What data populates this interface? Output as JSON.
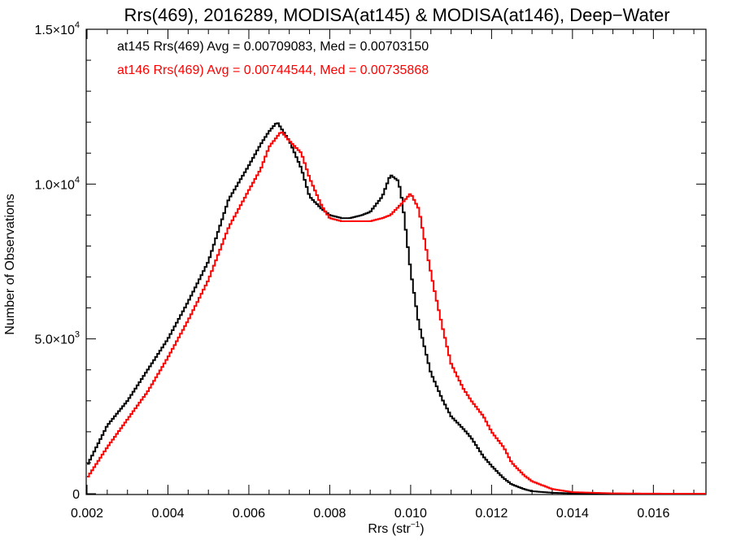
{
  "chart_data": {
    "type": "line",
    "title": "Rrs(469), 2016289, MODISA(at145) & MODISA(at146), Deep−Water",
    "xlabel": "Rrs (str",
    "xlabel_sup": "−1",
    "xlabel_close": ")",
    "ylabel": "Number of Observations",
    "xlim": [
      0.002,
      0.0173
    ],
    "ylim": [
      0,
      15000
    ],
    "x_ticks": [
      {
        "value": 0.002,
        "label": "0.002"
      },
      {
        "value": 0.004,
        "label": "0.004"
      },
      {
        "value": 0.006,
        "label": "0.006"
      },
      {
        "value": 0.008,
        "label": "0.008"
      },
      {
        "value": 0.01,
        "label": "0.010"
      },
      {
        "value": 0.012,
        "label": "0.012"
      },
      {
        "value": 0.014,
        "label": "0.014"
      },
      {
        "value": 0.016,
        "label": "0.016"
      }
    ],
    "y_ticks": [
      {
        "value": 0,
        "mantissa": "0",
        "exponent": ""
      },
      {
        "value": 5000,
        "mantissa": "5.0×10",
        "exponent": "3"
      },
      {
        "value": 10000,
        "mantissa": "1.0×10",
        "exponent": "4"
      },
      {
        "value": 15000,
        "mantissa": "1.5×10",
        "exponent": "4"
      }
    ],
    "annotations": [
      {
        "text": "at145 Rrs(469) Avg = 0.00709083, Med = 0.00703150",
        "color": "#000000"
      },
      {
        "text": "at146 Rrs(469) Avg = 0.00744544, Med = 0.00735868",
        "color": "#ff0000"
      }
    ],
    "series": [
      {
        "color": "#000000",
        "x": [
          0.002,
          0.0025,
          0.003,
          0.0035,
          0.004,
          0.0045,
          0.005,
          0.0055,
          0.006,
          0.0063,
          0.0065,
          0.0067,
          0.007,
          0.0073,
          0.0075,
          0.0078,
          0.008,
          0.0083,
          0.0085,
          0.0088,
          0.009,
          0.0093,
          0.0095,
          0.0097,
          0.0098,
          0.01,
          0.0102,
          0.0105,
          0.0108,
          0.011,
          0.0113,
          0.0115,
          0.0118,
          0.012,
          0.0123,
          0.0125,
          0.0128,
          0.013,
          0.0135,
          0.014,
          0.015,
          0.0173
        ],
        "y": [
          900,
          2200,
          3000,
          4000,
          5000,
          6200,
          7500,
          9500,
          10600,
          11300,
          11700,
          12000,
          11400,
          10500,
          9600,
          9200,
          9000,
          8900,
          8900,
          9000,
          9100,
          9600,
          10300,
          10100,
          9400,
          7200,
          5500,
          3900,
          3000,
          2500,
          2100,
          1800,
          1200,
          900,
          500,
          300,
          150,
          80,
          30,
          10,
          2,
          0
        ]
      },
      {
        "color": "#ff0000",
        "x": [
          0.002,
          0.0025,
          0.003,
          0.0035,
          0.004,
          0.0045,
          0.005,
          0.0055,
          0.006,
          0.0063,
          0.0065,
          0.0068,
          0.007,
          0.0073,
          0.0075,
          0.0078,
          0.008,
          0.0083,
          0.0085,
          0.0088,
          0.009,
          0.0093,
          0.0095,
          0.0098,
          0.01,
          0.0102,
          0.0104,
          0.0106,
          0.0108,
          0.011,
          0.0113,
          0.0115,
          0.0118,
          0.012,
          0.0123,
          0.0125,
          0.0128,
          0.013,
          0.0135,
          0.014,
          0.015,
          0.016,
          0.0173
        ],
        "y": [
          500,
          1500,
          2400,
          3300,
          4400,
          5600,
          6900,
          8600,
          9800,
          10500,
          11200,
          11700,
          11400,
          11000,
          10200,
          9300,
          8900,
          8800,
          8800,
          8800,
          8800,
          8900,
          9000,
          9400,
          9700,
          9200,
          7800,
          6500,
          5300,
          4200,
          3400,
          3000,
          2500,
          2000,
          1500,
          1000,
          600,
          400,
          150,
          50,
          10,
          2,
          0
        ]
      }
    ]
  }
}
